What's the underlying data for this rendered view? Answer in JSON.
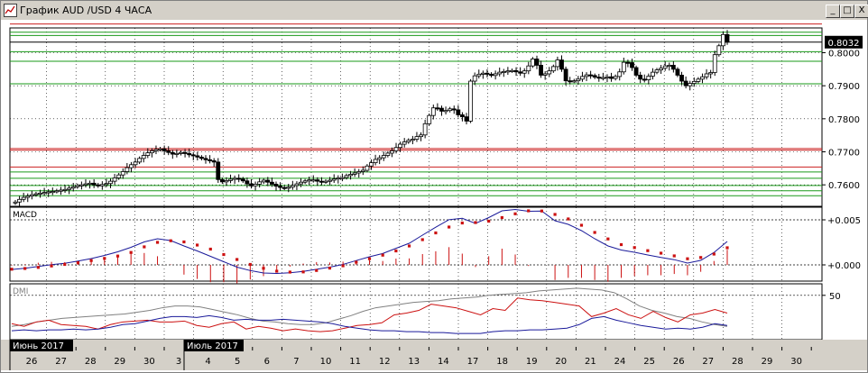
{
  "window": {
    "title": "График AUD /USD  4 ЧАСА",
    "minimize_glyph": "_",
    "maximize_glyph": "□",
    "close_glyph": "X",
    "app_icon": "chart-line-icon"
  },
  "colors": {
    "background": "#ffffff",
    "frame": "#000000",
    "green_levels": "#1a9a1a",
    "red_levels": "#cc2020",
    "candles": "#000000",
    "macd_line": "#1a1a9a",
    "macd_signal": "#cc1111",
    "macd_hist": "#cc1111",
    "dmi_adx": "#808080",
    "dmi_plus": "#cc1111",
    "dmi_minus": "#1a1a9a",
    "month_label_bg": "#000000",
    "month_label_fg": "#ffffff"
  },
  "chart_data": [
    {
      "type": "candlestick",
      "title": "",
      "ylim": [
        0.7535,
        0.8075
      ],
      "y_ticks": [
        "0.8000",
        "0.7900",
        "0.7800",
        "0.7700",
        "0.7600"
      ],
      "current_price": "0.8032",
      "grid": true,
      "green_levels": [
        0.8062,
        0.8052,
        0.8003,
        0.7974,
        0.7906,
        0.7639,
        0.762,
        0.7598,
        0.7582,
        0.7567
      ],
      "red_levels": [
        0.8087,
        0.771,
        0.7705,
        0.7654
      ],
      "closes": [
        0.7548,
        0.7556,
        0.7562,
        0.7566,
        0.757,
        0.7573,
        0.7575,
        0.7577,
        0.7579,
        0.758,
        0.7582,
        0.7584,
        0.7586,
        0.759,
        0.7594,
        0.7598,
        0.76,
        0.7603,
        0.7605,
        0.76,
        0.7597,
        0.7601,
        0.7604,
        0.7611,
        0.7621,
        0.763,
        0.764,
        0.7652,
        0.7661,
        0.7669,
        0.768,
        0.7689,
        0.7697,
        0.7703,
        0.7707,
        0.7709,
        0.7703,
        0.7698,
        0.7693,
        0.7695,
        0.7698,
        0.7695,
        0.7691,
        0.7688,
        0.7684,
        0.768,
        0.7676,
        0.7673,
        0.7669,
        0.7616,
        0.7609,
        0.7613,
        0.7617,
        0.762,
        0.7618,
        0.7612,
        0.7603,
        0.7597,
        0.7602,
        0.7609,
        0.7614,
        0.7608,
        0.7602,
        0.7596,
        0.7592,
        0.759,
        0.7593,
        0.7598,
        0.7603,
        0.7608,
        0.7612,
        0.7615,
        0.7615,
        0.7611,
        0.7609,
        0.7611,
        0.7614,
        0.7618,
        0.7621,
        0.7622,
        0.7628,
        0.7632,
        0.7636,
        0.764,
        0.7644,
        0.7657,
        0.7667,
        0.7677,
        0.7682,
        0.7689,
        0.7696,
        0.7703,
        0.7713,
        0.7723,
        0.773,
        0.7735,
        0.7738,
        0.7746,
        0.7751,
        0.7785,
        0.781,
        0.7833,
        0.7832,
        0.7823,
        0.7825,
        0.783,
        0.7827,
        0.7812,
        0.7806,
        0.7793,
        0.7914,
        0.793,
        0.7935,
        0.7938,
        0.7935,
        0.7931,
        0.7936,
        0.7941,
        0.7943,
        0.7945,
        0.7946,
        0.7942,
        0.7938,
        0.7945,
        0.796,
        0.7981,
        0.7962,
        0.7932,
        0.7936,
        0.7945,
        0.7958,
        0.7978,
        0.795,
        0.7915,
        0.7914,
        0.7915,
        0.792,
        0.7928,
        0.7933,
        0.7931,
        0.7926,
        0.7924,
        0.7925,
        0.7927,
        0.7922,
        0.7928,
        0.7942,
        0.7971,
        0.797,
        0.7955,
        0.7932,
        0.792,
        0.7918,
        0.7929,
        0.7941,
        0.7948,
        0.7953,
        0.796,
        0.7962,
        0.795,
        0.7932,
        0.7914,
        0.79,
        0.7907,
        0.7913,
        0.792,
        0.7927,
        0.7936,
        0.794,
        0.7994,
        0.8021,
        0.8055,
        0.8032
      ]
    },
    {
      "type": "line",
      "title": "MACD",
      "ylim": [
        -0.0018,
        0.0064
      ],
      "y_ticks": [
        "+0.005",
        "+0.000"
      ],
      "series": [
        {
          "name": "MACD",
          "values": [
            -0.00051,
            -0.00037,
            -0.00018,
            2e-05,
            0.00018,
            0.00042,
            0.0007,
            0.00105,
            0.00145,
            0.00195,
            0.00255,
            0.0029,
            0.0027,
            0.0021,
            0.00155,
            0.00095,
            0.00035,
            -0.00025,
            -0.00063,
            -0.0009,
            -0.00095,
            -0.00088,
            -0.00072,
            -0.00049,
            -0.00025,
            5e-05,
            0.00048,
            0.0009,
            0.00126,
            0.00184,
            0.0024,
            0.0033,
            0.00418,
            0.00502,
            0.00517,
            0.0046,
            0.00525,
            0.006,
            0.00615,
            0.00595,
            0.00598,
            0.0049,
            0.0045,
            0.0038,
            0.0029,
            0.0021,
            0.00165,
            0.0014,
            0.0011,
            0.00082,
            0.00058,
            0.0002,
            0.0005,
            0.00138,
            0.0026
          ]
        },
        {
          "name": "Signal",
          "values": [
            -0.00048,
            -0.0004,
            -0.00028,
            -0.00012,
            5e-05,
            0.00024,
            0.00048,
            0.00072,
            0.00098,
            0.00138,
            0.002,
            0.0025,
            0.00268,
            0.00255,
            0.0022,
            0.00175,
            0.00115,
            0.0006,
            5e-05,
            -0.00038,
            -0.0007,
            -0.0008,
            -0.00078,
            -0.00062,
            -0.00036,
            -0.0001,
            0.0003,
            0.00068,
            0.00108,
            0.00155,
            0.0021,
            0.0028,
            0.00355,
            0.0042,
            0.00465,
            0.0047,
            0.00485,
            0.00525,
            0.00567,
            0.006,
            0.00598,
            0.0056,
            0.0051,
            0.0044,
            0.0036,
            0.00288,
            0.00225,
            0.00192,
            0.00158,
            0.0013,
            0.001,
            0.00068,
            0.00082,
            0.0012,
            0.0019
          ]
        }
      ]
    },
    {
      "type": "line",
      "title": "DMI",
      "ylim": [
        0,
        63
      ],
      "y_ticks": [
        "50"
      ],
      "series": [
        {
          "name": "ADX",
          "values": [
            15,
            17,
            20,
            22,
            24,
            25,
            26,
            27,
            28,
            29,
            31,
            33,
            36,
            38,
            38,
            37,
            34,
            31,
            28,
            24,
            21,
            20,
            18,
            17,
            17,
            19,
            23,
            27,
            32,
            36,
            38,
            40,
            42,
            43,
            44,
            46,
            47,
            48,
            50,
            51,
            52,
            53,
            55,
            56,
            57,
            58,
            57,
            56,
            53,
            46,
            38,
            33,
            30,
            26,
            24,
            20,
            17,
            15
          ]
        },
        {
          "name": "+DI",
          "values": [
            18,
            15,
            20,
            22,
            17,
            16,
            15,
            12,
            17,
            20,
            21,
            22,
            20,
            20,
            21,
            16,
            14,
            18,
            20,
            12,
            15,
            13,
            10,
            12,
            10,
            9,
            10,
            13,
            16,
            17,
            19,
            28,
            30,
            33,
            40,
            38,
            36,
            32,
            28,
            35,
            33,
            47,
            45,
            44,
            42,
            40,
            38,
            26,
            30,
            35,
            28,
            24,
            32,
            25,
            20,
            28,
            30,
            34,
            30
          ]
        },
        {
          "name": "-DI",
          "values": [
            10,
            11,
            10,
            11,
            11,
            12,
            11,
            12,
            14,
            17,
            18,
            21,
            24,
            26,
            26,
            25,
            27,
            25,
            22,
            23,
            22,
            22,
            23,
            22,
            21,
            20,
            18,
            15,
            13,
            11,
            10,
            10,
            9,
            9,
            8,
            8,
            7,
            7,
            7,
            9,
            10,
            10,
            11,
            11,
            12,
            13,
            17,
            24,
            26,
            22,
            19,
            16,
            14,
            12,
            13,
            12,
            14,
            18,
            16
          ]
        }
      ]
    },
    {
      "type": "axis",
      "x_day_labels": [
        "26",
        "27",
        "28",
        "29",
        "30",
        "3",
        "4",
        "5",
        "6",
        "7",
        "10",
        "11",
        "12",
        "13",
        "14",
        "17",
        "18",
        "19",
        "20",
        "21",
        "24",
        "25",
        "26",
        "27",
        "28",
        "29",
        "30"
      ],
      "month_labels": [
        "Июнь 2017",
        "Июль 2017"
      ]
    }
  ]
}
